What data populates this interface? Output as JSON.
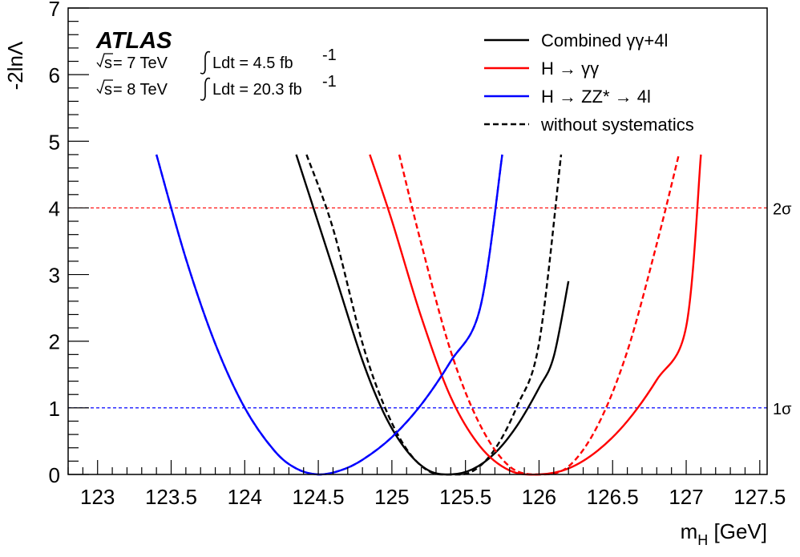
{
  "chart_data": {
    "type": "line",
    "title": "",
    "xlabel": "m_H [GeV]",
    "ylabel": "-2lnΛ",
    "xlim": [
      122.8,
      127.55
    ],
    "ylim": [
      0,
      7
    ],
    "x_ticks": [
      "123",
      "123.5",
      "124",
      "124.5",
      "125",
      "125.5",
      "126",
      "126.5",
      "127",
      "127.5"
    ],
    "x_tick_values": [
      123,
      123.5,
      124,
      124.5,
      125,
      125.5,
      126,
      126.5,
      127,
      127.5
    ],
    "y_ticks": [
      "0",
      "1",
      "2",
      "3",
      "4",
      "5",
      "6",
      "7"
    ],
    "y_tick_values": [
      0,
      1,
      2,
      3,
      4,
      5,
      6,
      7
    ],
    "experiment": "ATLAS",
    "info_lines": [
      {
        "sqrt": "s",
        "energy": " = 7 TeV ",
        "int": "Ldt = 4.5 fb",
        "sup": "-1"
      },
      {
        "sqrt": "s",
        "energy": " = 8 TeV ",
        "int": "Ldt = 20.3 fb",
        "sup": "-1"
      }
    ],
    "reference_lines": [
      {
        "y": 4,
        "label": "2σ",
        "color": "#ff0000"
      },
      {
        "y": 1,
        "label": "1σ",
        "color": "#0000ff"
      }
    ],
    "legend": {
      "position": "top-right",
      "entries": [
        {
          "label": "Combined γγ+4l",
          "color": "#000000",
          "dashed": false
        },
        {
          "label": "H → γγ",
          "color": "#ff0000",
          "dashed": false
        },
        {
          "label": "H → ZZ* → 4l",
          "color": "#0000ff",
          "dashed": false
        },
        {
          "label": "without systematics",
          "color": "#000000",
          "dashed": true
        }
      ]
    },
    "series": [
      {
        "name": "Combined γγ+4l",
        "color": "#000000",
        "dashed": false,
        "x": [
          124.35,
          124.6,
          124.8,
          124.95,
          125.1,
          125.25,
          125.4,
          125.55,
          125.7,
          125.85,
          126.0,
          126.1,
          126.2
        ],
        "y": [
          4.8,
          3.09,
          1.71,
          0.9,
          0.36,
          0.06,
          0.0,
          0.08,
          0.32,
          0.73,
          1.3,
          1.77,
          2.9
        ]
      },
      {
        "name": "Combined γγ+4l (without systematics)",
        "color": "#000000",
        "dashed": true,
        "x": [
          124.42,
          124.6,
          124.8,
          124.95,
          125.1,
          125.25,
          125.4,
          125.55,
          125.7,
          125.85,
          126.0,
          126.15
        ],
        "y": [
          4.8,
          3.69,
          1.97,
          1.02,
          0.38,
          0.05,
          0.0,
          0.05,
          0.38,
          1.02,
          1.97,
          4.8
        ]
      },
      {
        "name": "H → γγ",
        "color": "#ff0000",
        "dashed": false,
        "x": [
          124.85,
          125.0,
          125.2,
          125.4,
          125.6,
          125.8,
          126.0,
          126.2,
          126.4,
          126.6,
          126.8,
          127.0,
          127.1
        ],
        "y": [
          4.8,
          3.81,
          2.36,
          1.16,
          0.42,
          0.06,
          0.0,
          0.09,
          0.36,
          0.8,
          1.42,
          2.22,
          4.8
        ]
      },
      {
        "name": "H → γγ (without systematics)",
        "color": "#ff0000",
        "dashed": true,
        "x": [
          125.05,
          125.2,
          125.4,
          125.6,
          125.8,
          126.0,
          126.2,
          126.4,
          126.6,
          126.8,
          126.95
        ],
        "y": [
          4.8,
          3.46,
          1.85,
          0.74,
          0.12,
          0.0,
          0.12,
          0.74,
          1.85,
          3.46,
          4.8
        ]
      },
      {
        "name": "H → ZZ* → 4l",
        "color": "#0000ff",
        "dashed": false,
        "x": [
          123.4,
          123.6,
          123.8,
          124.0,
          124.2,
          124.35,
          124.5,
          124.65,
          124.8,
          125.0,
          125.2,
          125.4,
          125.6,
          125.75
        ],
        "y": [
          4.8,
          3.24,
          1.96,
          1.0,
          0.36,
          0.09,
          0.0,
          0.06,
          0.22,
          0.56,
          1.05,
          1.7,
          2.5,
          4.8
        ]
      },
      {
        "name": "H → ZZ* → 4l (without systematics)",
        "color": "#0000ff",
        "dashed": true,
        "x": [
          123.4,
          123.6,
          123.8,
          124.0,
          124.2,
          124.35,
          124.5,
          124.65,
          124.8,
          125.0,
          125.2,
          125.4,
          125.6,
          125.75
        ],
        "y": [
          4.8,
          3.24,
          1.96,
          1.0,
          0.36,
          0.09,
          0.0,
          0.06,
          0.22,
          0.56,
          1.05,
          1.7,
          2.5,
          4.8
        ]
      }
    ]
  }
}
